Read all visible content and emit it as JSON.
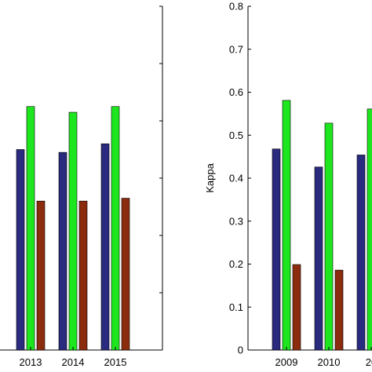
{
  "colors": {
    "series_blue": "#2a2a7e",
    "series_green": "#1ee61e",
    "series_brown": "#8b2c0e",
    "axis": "#000000"
  },
  "chart_data": [
    {
      "type": "bar",
      "categories": [
        "2013",
        "2014",
        "2015"
      ],
      "series": [
        {
          "values": [
            0.7,
            0.69,
            0.72
          ]
        },
        {
          "values": [
            0.85,
            0.83,
            0.85
          ]
        },
        {
          "values": [
            0.52,
            0.52,
            0.53
          ]
        }
      ],
      "ylim": [
        0,
        1.2
      ],
      "y_ticks": [],
      "ylabel": "",
      "xlabel": "",
      "grid": false
    },
    {
      "type": "bar",
      "categories": [
        "2009",
        "2010",
        "20"
      ],
      "series": [
        {
          "values": [
            0.468,
            0.426,
            0.454
          ]
        },
        {
          "values": [
            0.581,
            0.528,
            0.561
          ]
        },
        {
          "values": [
            0.199,
            0.186,
            null
          ]
        }
      ],
      "ylim": [
        0,
        0.8
      ],
      "y_ticks": [
        "0",
        "0.1",
        "0.2",
        "0.3",
        "0.4",
        "0.5",
        "0.6",
        "0.7",
        "0.8"
      ],
      "ylabel": "Kappa",
      "xlabel": "",
      "grid": false
    }
  ]
}
